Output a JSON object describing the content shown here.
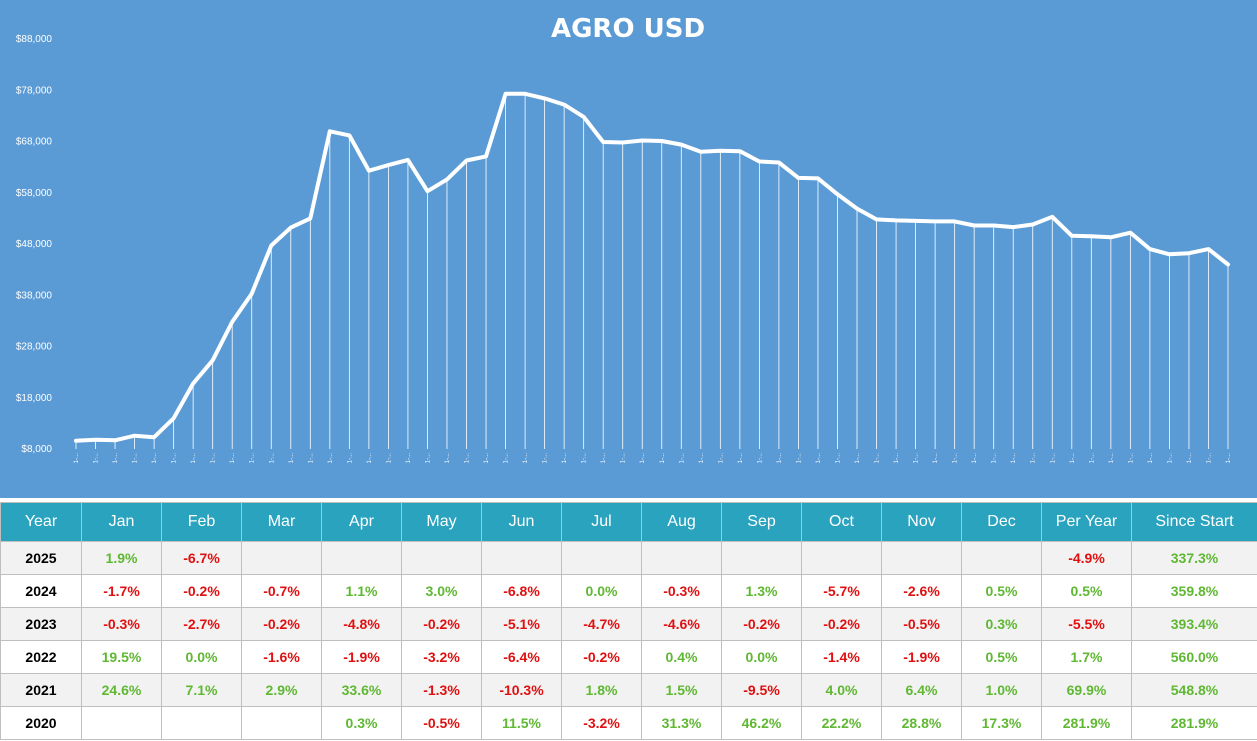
{
  "chart_data": {
    "type": "line",
    "title": "AGRO USD",
    "y_ticks": [
      "$8,000",
      "$18,000",
      "$28,000",
      "$38,000",
      "$48,000",
      "$58,000",
      "$68,000",
      "$78,000",
      "$88,000"
    ],
    "ylim": [
      8000,
      88000
    ],
    "x_tick_label": "1-...",
    "series": [
      {
        "values": [
          9600,
          9800,
          9700,
          10600,
          10300,
          14000,
          20800,
          25300,
          32800,
          38300,
          47700,
          51200,
          53000,
          70000,
          69200,
          62300,
          63400,
          64400,
          58300,
          60600,
          64300,
          65100,
          77300,
          77300,
          76400,
          75200,
          72800,
          67900,
          67800,
          68200,
          68100,
          67400,
          66000,
          66200,
          66100,
          64100,
          63900,
          60900,
          60800,
          57700,
          54900,
          52800,
          52600,
          52500,
          52400,
          52400,
          51600,
          51600,
          51300,
          51800,
          53300,
          49600,
          49500,
          49300,
          50200,
          47000,
          46000,
          46200,
          47000,
          44000
        ]
      }
    ]
  },
  "table": {
    "headers": [
      "Year",
      "Jan",
      "Feb",
      "Mar",
      "Apr",
      "May",
      "Jun",
      "Jul",
      "Aug",
      "Sep",
      "Oct",
      "Nov",
      "Dec",
      "Per Year",
      "Since Start"
    ],
    "rows": [
      {
        "year": "2025",
        "cells": [
          "1.9%",
          "-6.7%",
          "",
          "",
          "",
          "",
          "",
          "",
          "",
          "",
          "",
          "",
          "-4.9%",
          "337.3%"
        ]
      },
      {
        "year": "2024",
        "cells": [
          "-1.7%",
          "-0.2%",
          "-0.7%",
          "1.1%",
          "3.0%",
          "-6.8%",
          "0.0%",
          "-0.3%",
          "1.3%",
          "-5.7%",
          "-2.6%",
          "0.5%",
          "0.5%",
          "359.8%"
        ]
      },
      {
        "year": "2023",
        "cells": [
          "-0.3%",
          "-2.7%",
          "-0.2%",
          "-4.8%",
          "-0.2%",
          "-5.1%",
          "-4.7%",
          "-4.6%",
          "-0.2%",
          "-0.2%",
          "-0.5%",
          "0.3%",
          "-5.5%",
          "393.4%"
        ]
      },
      {
        "year": "2022",
        "cells": [
          "19.5%",
          "0.0%",
          "-1.6%",
          "-1.9%",
          "-3.2%",
          "-6.4%",
          "-0.2%",
          "0.4%",
          "0.0%",
          "-1.4%",
          "-1.9%",
          "0.5%",
          "1.7%",
          "560.0%"
        ]
      },
      {
        "year": "2021",
        "cells": [
          "24.6%",
          "7.1%",
          "2.9%",
          "33.6%",
          "-1.3%",
          "-10.3%",
          "1.8%",
          "1.5%",
          "-9.5%",
          "4.0%",
          "6.4%",
          "1.0%",
          "69.9%",
          "548.8%"
        ]
      },
      {
        "year": "2020",
        "cells": [
          "",
          "",
          "",
          "0.3%",
          "-0.5%",
          "11.5%",
          "-3.2%",
          "31.3%",
          "46.2%",
          "22.2%",
          "28.8%",
          "17.3%",
          "281.9%",
          "281.9%"
        ]
      }
    ]
  },
  "colors": {
    "chart_background": "#5b9bd5",
    "line": "#ffffff",
    "header_background": "#2aa3bf",
    "positive": "#5fb832",
    "negative": "#e01010"
  }
}
